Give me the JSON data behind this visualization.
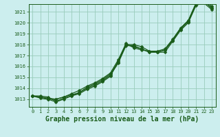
{
  "title": "Graphe pression niveau de la mer (hPa)",
  "bg_color": "#cceeee",
  "grid_color": "#99ccbb",
  "line_color": "#1a5c1a",
  "xlim": [
    -0.5,
    23.5
  ],
  "ylim": [
    1012.3,
    1021.7
  ],
  "yticks": [
    1013,
    1014,
    1015,
    1016,
    1017,
    1018,
    1019,
    1020,
    1021
  ],
  "xticks": [
    0,
    1,
    2,
    3,
    4,
    5,
    6,
    7,
    8,
    9,
    10,
    11,
    12,
    13,
    14,
    15,
    16,
    17,
    18,
    19,
    20,
    21,
    22,
    23
  ],
  "series": [
    [
      1013.3,
      1013.3,
      1013.2,
      1012.8,
      1013.1,
      1013.3,
      1013.5,
      1013.9,
      1014.2,
      1014.6,
      1015.1,
      1016.5,
      1018.0,
      1018.0,
      1017.8,
      1017.4,
      1017.3,
      1017.3,
      1018.3,
      1019.3,
      1020.0,
      1021.6,
      1021.8,
      1021.2
    ],
    [
      1013.3,
      1013.2,
      1013.1,
      1013.0,
      1013.2,
      1013.4,
      1013.6,
      1014.0,
      1014.3,
      1014.7,
      1015.2,
      1016.3,
      1017.9,
      1017.9,
      1017.6,
      1017.3,
      1017.3,
      1017.5,
      1018.4,
      1019.4,
      1020.1,
      1021.7,
      1021.9,
      1021.4
    ],
    [
      1013.3,
      1013.1,
      1013.0,
      1013.0,
      1013.2,
      1013.5,
      1013.8,
      1014.2,
      1014.5,
      1014.9,
      1015.4,
      1016.6,
      1018.1,
      1017.7,
      1017.5,
      1017.4,
      1017.4,
      1017.6,
      1018.5,
      1019.5,
      1020.2,
      1021.8,
      1022.1,
      1021.5
    ],
    [
      1013.3,
      1013.2,
      1013.0,
      1012.75,
      1013.0,
      1013.3,
      1013.6,
      1014.1,
      1014.4,
      1014.8,
      1015.3,
      1016.4,
      1018.0,
      1017.8,
      1017.6,
      1017.3,
      1017.3,
      1017.5,
      1018.4,
      1019.5,
      1020.2,
      1021.8,
      1022.0,
      1021.3
    ]
  ],
  "xlabel_fontsize": 7,
  "tick_fontsize": 5,
  "marker_size": 2.5,
  "line_width": 0.9
}
